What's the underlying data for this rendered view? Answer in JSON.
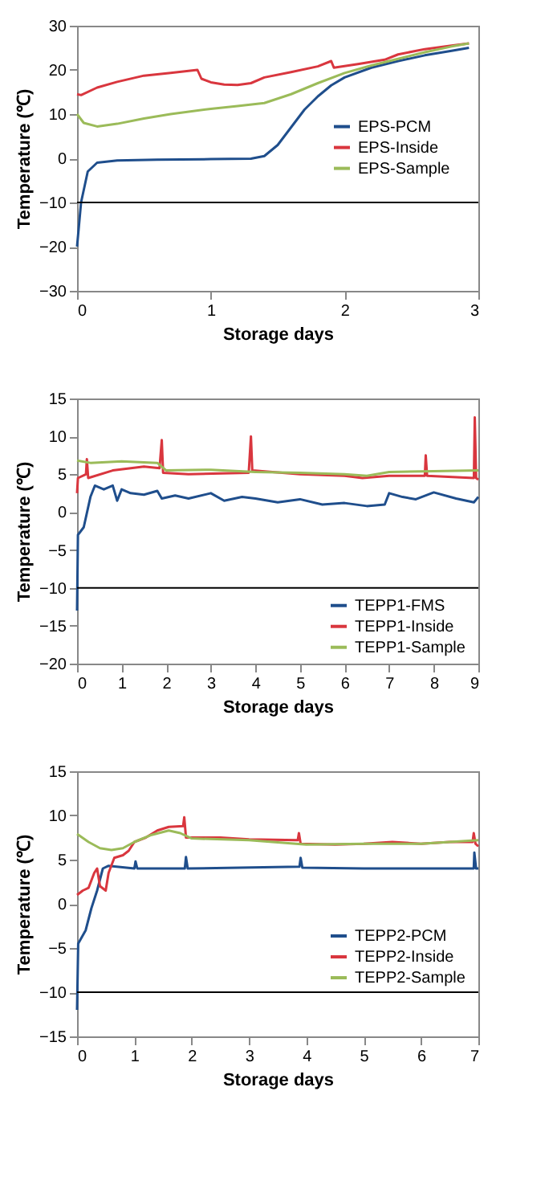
{
  "chart_data": [
    {
      "type": "line",
      "xlabel": "Storage days",
      "ylabel": "Temperature (℃)",
      "xlim": [
        0,
        3
      ],
      "xticks": [
        0,
        1,
        2,
        3
      ],
      "ylim": [
        -30,
        30
      ],
      "yticks": [
        -30,
        -20,
        -10,
        0,
        10,
        20,
        30
      ],
      "grid": false,
      "legend": "right",
      "line_style": "solid",
      "ref_lines": [
        {
          "axis": "y",
          "value": -10,
          "color": "#000000"
        }
      ],
      "series": [
        {
          "name": "EPS-PCM",
          "color": "#1f4e8c",
          "x": [
            0,
            0.03,
            0.08,
            0.15,
            0.3,
            0.6,
            1.0,
            1.3,
            1.4,
            1.5,
            1.6,
            1.7,
            1.8,
            1.9,
            2.0,
            2.2,
            2.4,
            2.6,
            2.8,
            2.93
          ],
          "values": [
            -20,
            -10,
            -3,
            -1,
            -0.5,
            -0.3,
            -0.2,
            -0.1,
            0.5,
            3,
            7,
            11,
            14,
            16.5,
            18.3,
            20.5,
            22,
            23.3,
            24.3,
            25
          ]
        },
        {
          "name": "EPS-Inside",
          "color": "#d9363e",
          "x": [
            0,
            0.03,
            0.15,
            0.3,
            0.5,
            0.7,
            0.9,
            0.93,
            1.0,
            1.1,
            1.2,
            1.3,
            1.4,
            1.6,
            1.8,
            1.9,
            1.92,
            2.1,
            2.3,
            2.4,
            2.6,
            2.8,
            2.93
          ],
          "values": [
            14.5,
            14.3,
            16,
            17.3,
            18.7,
            19.3,
            20,
            18,
            17.2,
            16.7,
            16.6,
            17,
            18.3,
            19.5,
            20.8,
            22,
            20.5,
            21.3,
            22.3,
            23.5,
            24.7,
            25.5,
            26
          ]
        },
        {
          "name": "EPS-Sample",
          "color": "#9bbb59",
          "x": [
            0,
            0.05,
            0.15,
            0.3,
            0.5,
            0.7,
            1.0,
            1.2,
            1.4,
            1.6,
            1.8,
            2.0,
            2.2,
            2.4,
            2.6,
            2.8,
            2.93
          ],
          "values": [
            10,
            8,
            7.2,
            7.8,
            9,
            10,
            11.2,
            11.8,
            12.5,
            14.5,
            17,
            19.3,
            21,
            22.5,
            24,
            25.3,
            26
          ]
        }
      ]
    },
    {
      "type": "line",
      "xlabel": "Storage days",
      "ylabel": "Temperature (℃)",
      "xlim": [
        0,
        9
      ],
      "xticks": [
        0,
        1,
        2,
        3,
        4,
        5,
        6,
        7,
        8,
        9
      ],
      "ylim": [
        -20,
        15
      ],
      "yticks": [
        -20,
        -15,
        -10,
        -5,
        0,
        5,
        10,
        15
      ],
      "grid": false,
      "legend": "bottom right",
      "line_style": "solid",
      "ref_lines": [
        {
          "axis": "y",
          "value": -10,
          "color": "#000000"
        }
      ],
      "series": [
        {
          "name": "TEPP1-FMS",
          "color": "#1f4e8c",
          "x": [
            0,
            0.02,
            0.15,
            0.3,
            0.4,
            0.6,
            0.8,
            0.9,
            1,
            1.2,
            1.5,
            1.8,
            1.9,
            2.2,
            2.5,
            3,
            3.3,
            3.7,
            4,
            4.5,
            5,
            5.5,
            6,
            6.5,
            6.9,
            7,
            7.3,
            7.6,
            8,
            8.5,
            8.9,
            9
          ],
          "values": [
            -13,
            -3,
            -2,
            2,
            3.5,
            3,
            3.5,
            1.5,
            3,
            2.5,
            2.3,
            2.8,
            1.8,
            2.2,
            1.8,
            2.5,
            1.5,
            2,
            1.8,
            1.3,
            1.7,
            1,
            1.2,
            0.8,
            1,
            2.5,
            2,
            1.7,
            2.6,
            1.8,
            1.3,
            2
          ]
        },
        {
          "name": "TEPP1-Inside",
          "color": "#d9363e",
          "x": [
            0,
            0.02,
            0.2,
            0.22,
            0.25,
            0.8,
            1.5,
            1.85,
            1.9,
            1.93,
            2.5,
            3.85,
            3.9,
            3.93,
            5,
            6,
            6.4,
            7,
            7.8,
            7.82,
            7.85,
            8.9,
            8.92,
            8.95,
            9
          ],
          "values": [
            2.5,
            4.5,
            5,
            7,
            4.5,
            5.5,
            6,
            5.8,
            9.5,
            5.2,
            5,
            5.2,
            10,
            5.5,
            5,
            4.8,
            4.5,
            4.8,
            4.8,
            7.5,
            4.8,
            4.5,
            12.5,
            4.5,
            4.3
          ]
        },
        {
          "name": "TEPP1-Sample",
          "color": "#9bbb59",
          "x": [
            0,
            0.3,
            1,
            1.8,
            2,
            3,
            4,
            5,
            6,
            6.5,
            7,
            8,
            9
          ],
          "values": [
            6.8,
            6.5,
            6.7,
            6.5,
            5.5,
            5.6,
            5.3,
            5.2,
            5,
            4.8,
            5.3,
            5.4,
            5.5
          ]
        }
      ]
    },
    {
      "type": "line",
      "xlabel": "Storage days",
      "ylabel": "Temperature (℃)",
      "xlim": [
        0,
        7
      ],
      "xticks": [
        0,
        1,
        2,
        3,
        4,
        5,
        6,
        7
      ],
      "ylim": [
        -15,
        15
      ],
      "yticks": [
        -15,
        -10,
        -5,
        0,
        5,
        10,
        15
      ],
      "grid": false,
      "legend": "bottom right",
      "line_style": "solid",
      "ref_lines": [
        {
          "axis": "y",
          "value": -10,
          "color": "#000000"
        }
      ],
      "series": [
        {
          "name": "TEPP2-PCM",
          "color": "#1f4e8c",
          "x": [
            0,
            0.02,
            0.15,
            0.25,
            0.35,
            0.45,
            0.55,
            1,
            1.02,
            1.05,
            1.88,
            1.9,
            1.93,
            3.88,
            3.9,
            3.93,
            5,
            6,
            6.92,
            6.93,
            6.96,
            7
          ],
          "values": [
            -12,
            -4.5,
            -3,
            -0.5,
            1.5,
            4,
            4.3,
            4,
            4.8,
            4,
            4,
            5.3,
            4,
            4.2,
            5.2,
            4.1,
            4,
            4,
            4,
            5.8,
            4,
            4
          ]
        },
        {
          "name": "TEPP2-Inside",
          "color": "#d9363e",
          "x": [
            0,
            0.1,
            0.2,
            0.3,
            0.35,
            0.4,
            0.5,
            0.55,
            0.65,
            0.8,
            0.9,
            1,
            1.2,
            1.4,
            1.6,
            1.85,
            1.87,
            1.9,
            2.5,
            3,
            3.85,
            3.87,
            3.9,
            4.5,
            5,
            5.5,
            6,
            6.5,
            6.9,
            6.92,
            6.95,
            7
          ],
          "values": [
            1,
            1.5,
            1.8,
            3.5,
            4,
            2,
            1.5,
            3.5,
            5.2,
            5.5,
            6,
            7,
            7.5,
            8.3,
            8.7,
            8.8,
            9.8,
            7.5,
            7.5,
            7.3,
            7.2,
            8,
            6.8,
            6.7,
            6.8,
            7,
            6.8,
            7,
            7,
            8,
            6.8,
            6.5
          ]
        },
        {
          "name": "TEPP2-Sample",
          "color": "#9bbb59",
          "x": [
            0,
            0.2,
            0.4,
            0.6,
            0.8,
            1,
            1.3,
            1.6,
            1.8,
            2,
            3,
            4,
            5,
            6,
            7
          ],
          "values": [
            7.9,
            7,
            6.3,
            6.1,
            6.3,
            7,
            7.8,
            8.3,
            8,
            7.4,
            7.2,
            6.7,
            6.8,
            6.8,
            7.2
          ]
        }
      ]
    }
  ]
}
